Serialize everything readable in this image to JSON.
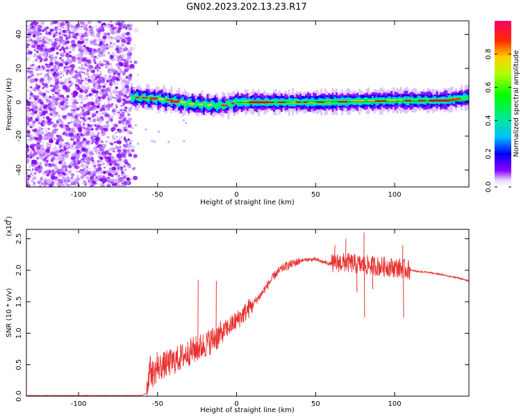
{
  "title": "GN02.2023.202.13.23.R17",
  "chart_data": [
    {
      "type": "heatmap",
      "xlabel": "Height of straight line (km)",
      "ylabel": "Frequency (Hz)",
      "xlim": [
        -133,
        147
      ],
      "ylim": [
        -50,
        48
      ],
      "xticks": [
        "-100",
        "-50",
        "0",
        "50",
        "100"
      ],
      "xtick_values": [
        -100,
        -50,
        0,
        50,
        100
      ],
      "yticks": [
        "-40",
        "-20",
        "0",
        "20",
        "40"
      ],
      "ytick_values": [
        -40,
        -20,
        0,
        20,
        40
      ],
      "colorbar": {
        "label": "Normalized spectral amplitude",
        "range": [
          0,
          1
        ],
        "ticks": [
          "0.0",
          "0.2",
          "0.4",
          "0.6",
          "0.8"
        ],
        "tick_values": [
          0.0,
          0.2,
          0.4,
          0.6,
          0.8
        ]
      },
      "regions": [
        {
          "description": "scattered low-amplitude noise",
          "x_range": [
            -133,
            -67
          ],
          "freq_range": [
            -50,
            48
          ],
          "amplitude": 0.1
        },
        {
          "description": "narrow band near 0 Hz",
          "x_range": [
            -67,
            147
          ],
          "freq_center": [
            [
              -67,
              3
            ],
            [
              -50,
              2
            ],
            [
              -30,
              -1
            ],
            [
              -10,
              -2
            ],
            [
              0,
              0
            ],
            [
              50,
              0
            ],
            [
              100,
              1
            ],
            [
              130,
              1
            ],
            [
              147,
              3
            ]
          ],
          "amplitude": 0.9
        }
      ],
      "grid": false
    },
    {
      "type": "line",
      "xlabel": "Height of straight line (km)",
      "ylabel": "SNR (10 * v/v)",
      "yscale_label": "(x10",
      "yscale_exp": "4",
      "xlim": [
        -133,
        147
      ],
      "ylim": [
        0,
        2.65
      ],
      "xticks": [
        "-100",
        "-50",
        "0",
        "50",
        "100"
      ],
      "xtick_values": [
        -100,
        -50,
        0,
        50,
        100
      ],
      "yticks": [
        "0.0",
        "0.5",
        "1.0",
        "1.5",
        "2.0",
        "2.5"
      ],
      "ytick_values": [
        0.0,
        0.5,
        1.0,
        1.5,
        2.0,
        2.5
      ],
      "series": [
        {
          "color": "#e8312f",
          "x": [
            -133,
            -60,
            -57,
            -55,
            -53,
            -50,
            -45,
            -40,
            -35,
            -30,
            -25,
            -20,
            -15,
            -10,
            -5,
            0,
            5,
            10,
            15,
            20,
            25,
            30,
            35,
            40,
            45,
            50,
            55,
            60,
            65,
            70,
            75,
            80,
            85,
            90,
            95,
            100,
            105,
            110,
            115,
            120,
            125,
            130,
            135,
            140,
            147
          ],
          "y": [
            0.01,
            0.01,
            0.05,
            0.45,
            0.35,
            0.45,
            0.5,
            0.55,
            0.62,
            0.7,
            0.75,
            0.82,
            0.9,
            0.98,
            1.1,
            1.2,
            1.32,
            1.45,
            1.6,
            1.78,
            1.95,
            2.05,
            2.1,
            2.15,
            2.17,
            2.17,
            2.13,
            2.1,
            2.12,
            2.12,
            2.1,
            2.08,
            2.08,
            2.06,
            2.06,
            2.04,
            2.03,
            2.0,
            1.98,
            1.97,
            1.95,
            1.93,
            1.9,
            1.88,
            1.83
          ]
        }
      ],
      "spikes": [
        {
          "x": -24.5,
          "y": 1.85
        },
        {
          "x": -13,
          "y": 1.83
        },
        {
          "x": -50.5,
          "y": 0.7
        },
        {
          "x": 80.5,
          "y": 2.6
        },
        {
          "x": 80.8,
          "y": 1.25
        },
        {
          "x": 105,
          "y": 2.4
        },
        {
          "x": 105.5,
          "y": 1.25
        },
        {
          "x": 69,
          "y": 2.5
        },
        {
          "x": 62,
          "y": 2.4
        },
        {
          "x": 86,
          "y": 1.7
        },
        {
          "x": 76,
          "y": 1.65
        }
      ],
      "grid": false
    }
  ]
}
